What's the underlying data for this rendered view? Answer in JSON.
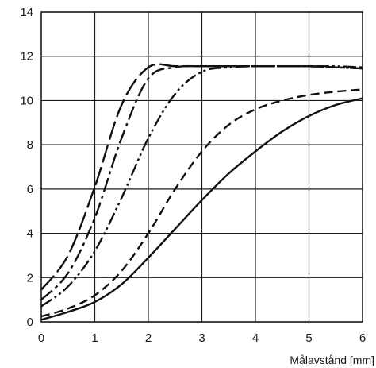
{
  "chart_data": {
    "type": "line",
    "xlabel": "Målavstånd [mm]",
    "ylabel": "",
    "xlim": [
      0,
      6
    ],
    "ylim": [
      0,
      14
    ],
    "x_ticks": [
      "0",
      "1",
      "2",
      "3",
      "4",
      "5",
      "6"
    ],
    "y_ticks": [
      "0",
      "2",
      "4",
      "6",
      "8",
      "10",
      "12",
      "14"
    ],
    "grid": true,
    "series": [
      {
        "style": "solid",
        "x": [
          0,
          0.5,
          1,
          1.5,
          2,
          2.5,
          3,
          3.5,
          4,
          4.5,
          5,
          5.5,
          6
        ],
        "y": [
          0.1,
          0.45,
          0.9,
          1.7,
          2.9,
          4.2,
          5.5,
          6.7,
          7.7,
          8.6,
          9.3,
          9.8,
          10.1
        ]
      },
      {
        "style": "dash",
        "x": [
          0,
          0.5,
          1,
          1.5,
          2,
          2.5,
          3,
          3.5,
          4,
          4.5,
          5,
          5.5,
          6
        ],
        "y": [
          0.25,
          0.6,
          1.2,
          2.3,
          4.0,
          6.0,
          7.7,
          8.9,
          9.6,
          10.0,
          10.25,
          10.4,
          10.5
        ]
      },
      {
        "style": "dash-dot-dot",
        "x": [
          0,
          0.5,
          1,
          1.5,
          2,
          2.5,
          3,
          3.5,
          4,
          4.5,
          5,
          5.5,
          6
        ],
        "y": [
          0.7,
          1.6,
          3.2,
          5.6,
          8.3,
          10.3,
          11.3,
          11.5,
          11.55,
          11.55,
          11.55,
          11.55,
          11.5
        ]
      },
      {
        "style": "dash-dot",
        "x": [
          0,
          0.5,
          1,
          1.5,
          2,
          2.5,
          3,
          3.5,
          4,
          4.5,
          5,
          5.5,
          6
        ],
        "y": [
          1.0,
          2.2,
          4.7,
          8.3,
          11.0,
          11.5,
          11.55,
          11.55,
          11.55,
          11.55,
          11.55,
          11.5,
          11.45
        ]
      },
      {
        "style": "long-dash",
        "x": [
          0,
          0.5,
          1,
          1.5,
          2,
          2.5,
          3,
          3.5,
          4,
          4.5,
          5,
          5.5,
          6
        ],
        "y": [
          1.45,
          3.0,
          6.1,
          9.8,
          11.5,
          11.55,
          11.55,
          11.55,
          11.55,
          11.55,
          11.55,
          11.5,
          11.45
        ]
      }
    ]
  },
  "colors": {
    "line": "#111111",
    "grid": "#1a1a1a",
    "background": "#ffffff"
  }
}
